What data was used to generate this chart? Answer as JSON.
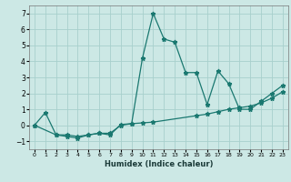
{
  "title": "",
  "xlabel": "Humidex (Indice chaleur)",
  "bg_color": "#cce8e5",
  "grid_color": "#a8d0cc",
  "line_color": "#1a7870",
  "xlim": [
    -0.5,
    23.5
  ],
  "ylim": [
    -1.5,
    7.5
  ],
  "yticks": [
    -1,
    0,
    1,
    2,
    3,
    4,
    5,
    6,
    7
  ],
  "xticks": [
    0,
    1,
    2,
    3,
    4,
    5,
    6,
    7,
    8,
    9,
    10,
    11,
    12,
    13,
    14,
    15,
    16,
    17,
    18,
    19,
    20,
    21,
    22,
    23
  ],
  "line1_x": [
    0,
    1,
    2,
    3,
    4,
    5,
    6,
    7,
    8,
    9,
    10,
    11,
    12,
    13,
    14,
    15,
    16,
    17,
    18,
    19,
    20,
    21,
    22,
    23
  ],
  "line1_y": [
    0.0,
    0.8,
    -0.6,
    -0.7,
    -0.8,
    -0.6,
    -0.5,
    -0.6,
    0.05,
    0.1,
    4.2,
    7.0,
    5.4,
    5.2,
    3.3,
    3.3,
    1.3,
    3.4,
    2.6,
    1.0,
    1.0,
    1.5,
    2.0,
    2.5
  ],
  "line2_x": [
    0,
    2,
    3,
    4,
    5,
    6,
    7,
    8,
    9,
    10,
    11,
    15,
    16,
    17,
    18,
    19,
    20,
    21,
    22,
    23
  ],
  "line2_y": [
    0.0,
    -0.6,
    -0.6,
    -0.7,
    -0.6,
    -0.5,
    -0.5,
    0.0,
    0.1,
    0.15,
    0.2,
    0.6,
    0.7,
    0.85,
    1.0,
    1.1,
    1.2,
    1.4,
    1.7,
    2.1
  ],
  "marker_size": 3.5,
  "linewidth": 0.9
}
